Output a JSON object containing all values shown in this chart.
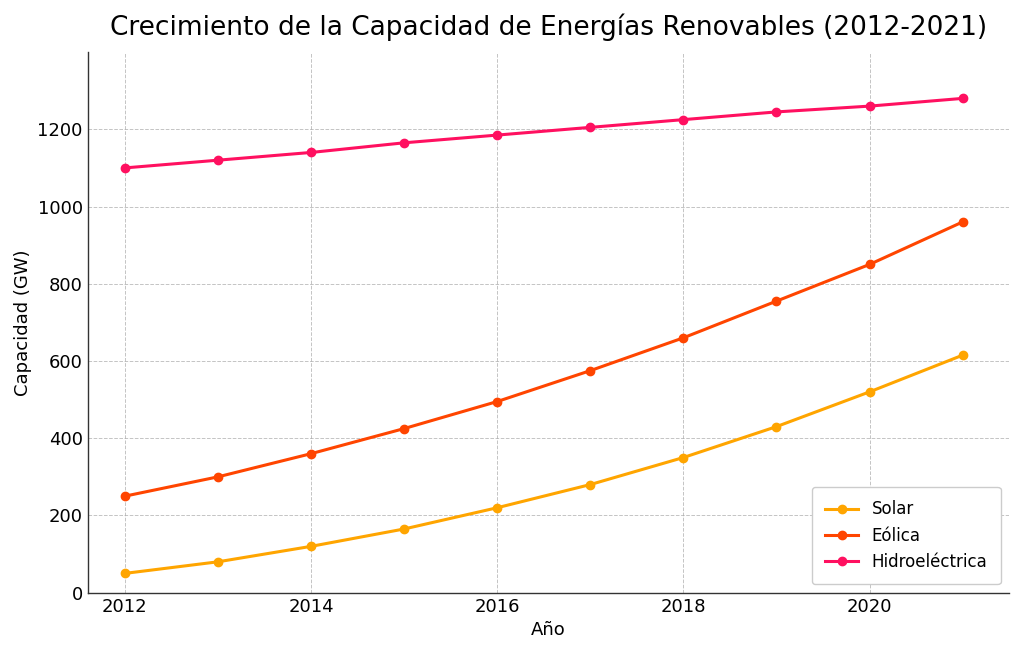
{
  "title": "Crecimiento de la Capacidad de Energías Renovables (2012-2021)",
  "xlabel": "Año",
  "ylabel": "Capacidad (GW)",
  "years": [
    2012,
    2013,
    2014,
    2015,
    2016,
    2017,
    2018,
    2019,
    2020,
    2021
  ],
  "solar": [
    50,
    80,
    120,
    165,
    220,
    280,
    350,
    430,
    520,
    615
  ],
  "eolica": [
    250,
    300,
    360,
    425,
    495,
    575,
    660,
    755,
    850,
    960
  ],
  "hidroelectrica": [
    1100,
    1120,
    1140,
    1165,
    1185,
    1205,
    1225,
    1245,
    1260,
    1280
  ],
  "solar_color": "#FFA500",
  "eolica_color": "#FF4500",
  "hidroelectrica_color": "#FF1060",
  "background_color": "#ffffff",
  "grid_color": "#aaaaaa",
  "linewidth": 2.2,
  "markersize": 6,
  "title_fontsize": 19,
  "label_fontsize": 13,
  "tick_fontsize": 13,
  "legend_fontsize": 12,
  "ylim": [
    0,
    1400
  ],
  "yticks": [
    0,
    200,
    400,
    600,
    800,
    1000,
    1200
  ],
  "xlim": [
    2011.6,
    2021.5
  ],
  "xtick_labels": [
    2012,
    2014,
    2016,
    2018,
    2020
  ]
}
